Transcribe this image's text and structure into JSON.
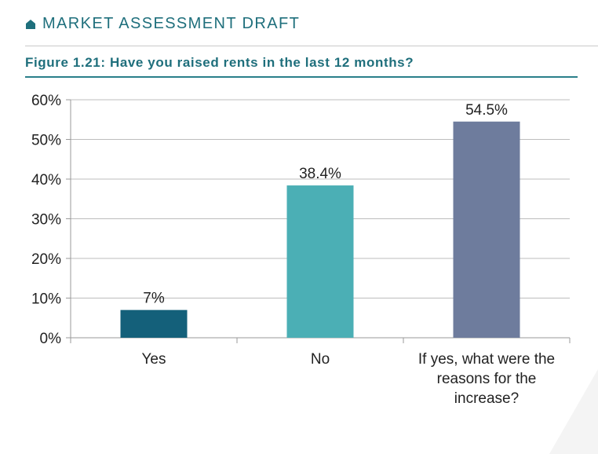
{
  "header": {
    "title": "MARKET ASSESSMENT DRAFT",
    "icon": "house-icon",
    "color": "#1f6f7c"
  },
  "figure": {
    "title": "Figure 1.21: Have you raised rents in the last 12 months?"
  },
  "chart_data": {
    "type": "bar",
    "title": "Figure 1.21: Have you raised rents in the last 12 months?",
    "categories": [
      [
        "Yes"
      ],
      [
        "No"
      ],
      [
        "If yes, what were the",
        "reasons for the",
        "increase?"
      ]
    ],
    "values": [
      7,
      38.4,
      54.5
    ],
    "value_labels": [
      "7%",
      "38.4%",
      "54.5%"
    ],
    "colors": [
      "#14607a",
      "#4bafb5",
      "#6e7c9d"
    ],
    "ylim": [
      0,
      60
    ],
    "yticks": [
      0,
      10,
      20,
      30,
      40,
      50,
      60
    ],
    "ytick_labels": [
      "0%",
      "10%",
      "20%",
      "30%",
      "40%",
      "50%",
      "60%"
    ],
    "grid": true,
    "legend": "none",
    "xlabel": "",
    "ylabel": ""
  }
}
